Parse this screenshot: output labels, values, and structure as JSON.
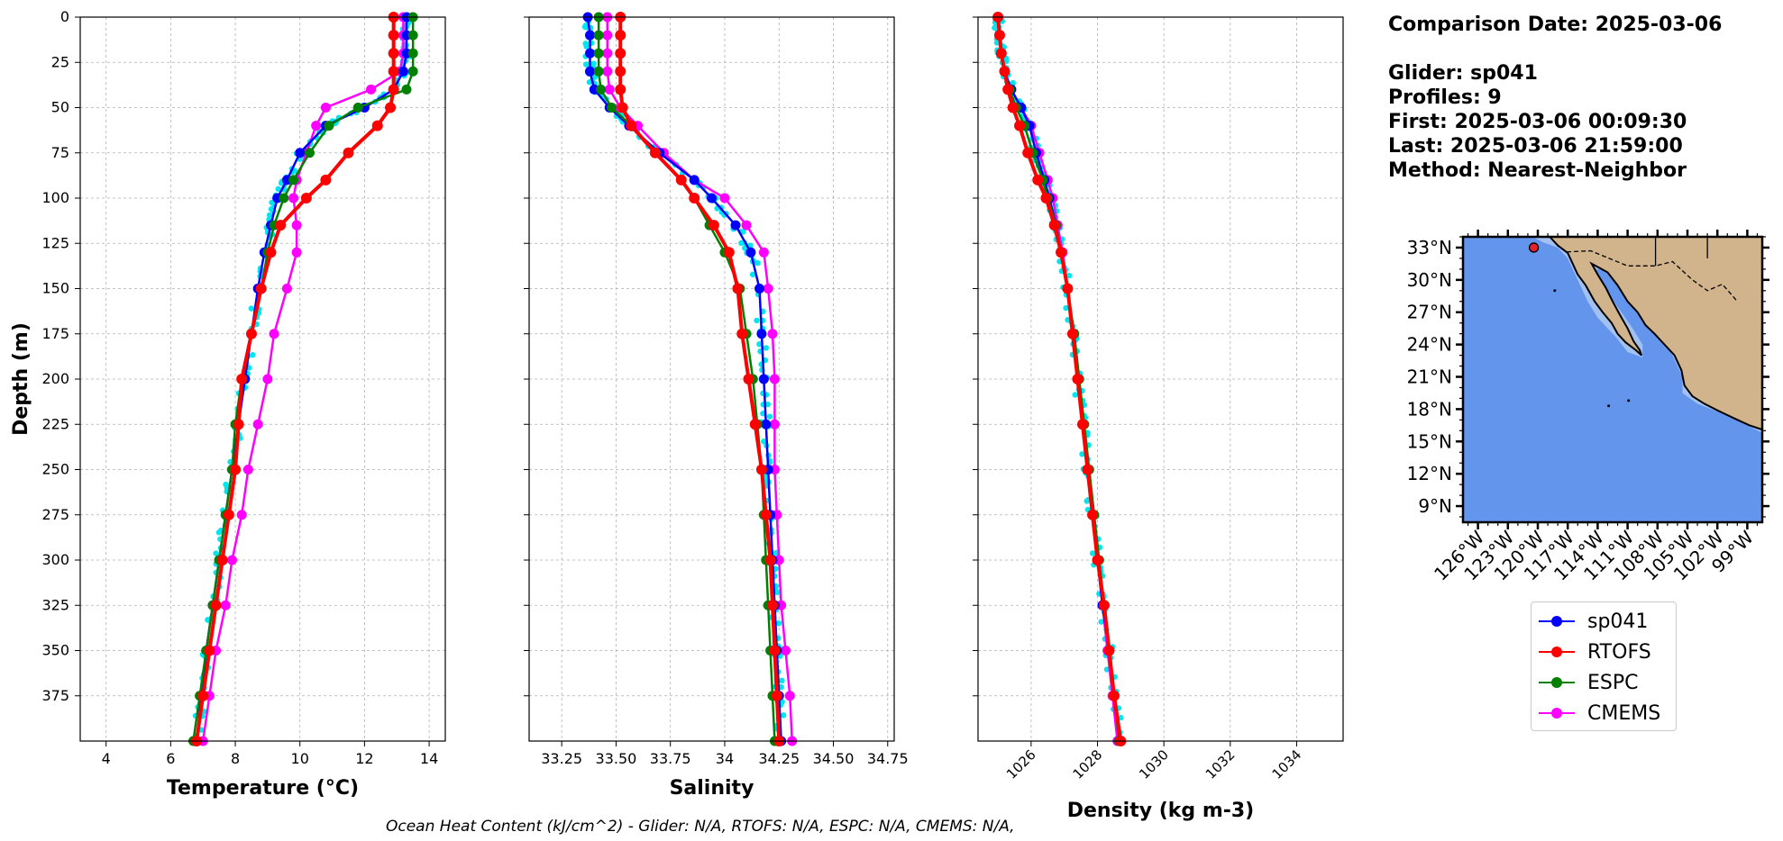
{
  "info": {
    "comparison_date": "Comparison Date: 2025-03-06",
    "glider": "Glider: sp041",
    "profiles": "Profiles: 9",
    "first": "First: 2025-03-06 00:09:30",
    "last": "Last: 2025-03-06 21:59:00",
    "method": "Method: Nearest-Neighbor"
  },
  "footer": "Ocean Heat Content (kJ/cm^2) - Glider: N/A,  RTOFS: N/A,  ESPC: N/A,  CMEMS: N/A,",
  "colors": {
    "sp041": "#0000ff",
    "RTOFS": "#ff0000",
    "ESPC": "#008000",
    "CMEMS": "#ff00ff",
    "glider_raw": "#00e5ee",
    "grid": "#b0b0b0",
    "ocean": "#6495ed",
    "shelf": "#a3c1ef",
    "land": "#d2b48c"
  },
  "legend": [
    {
      "name": "sp041",
      "color": "#0000ff"
    },
    {
      "name": "RTOFS",
      "color": "#ff0000"
    },
    {
      "name": "ESPC",
      "color": "#008000"
    },
    {
      "name": "CMEMS",
      "color": "#ff00ff"
    }
  ],
  "map": {
    "lat_ticks": [
      "33°N",
      "30°N",
      "27°N",
      "24°N",
      "21°N",
      "18°N",
      "15°N",
      "12°N",
      "9°N"
    ],
    "lon_ticks": [
      "126°W",
      "123°W",
      "120°W",
      "117°W",
      "114°W",
      "111°W",
      "108°W",
      "105°W",
      "102°W",
      "99°W"
    ],
    "glider_position": [
      -120.4,
      33.0
    ]
  },
  "chart_data": [
    {
      "type": "line",
      "xlabel": "Temperature (°C)",
      "ylabel": "Depth (m)",
      "xlim": [
        3.2,
        14.5
      ],
      "ylim": [
        400,
        0
      ],
      "xticks": [
        4,
        6,
        8,
        10,
        12,
        14
      ],
      "yticks": [
        0,
        25,
        50,
        75,
        100,
        125,
        150,
        175,
        200,
        225,
        250,
        275,
        300,
        325,
        350,
        375
      ],
      "depth": [
        0,
        10,
        20,
        30,
        40,
        50,
        60,
        75,
        90,
        100,
        115,
        130,
        150,
        175,
        200,
        225,
        250,
        275,
        300,
        325,
        350,
        375,
        400
      ],
      "series": [
        {
          "name": "sp041",
          "values": [
            13.3,
            13.3,
            13.3,
            13.2,
            12.9,
            12.0,
            10.8,
            10.0,
            9.6,
            9.3,
            9.1,
            8.9,
            8.7,
            8.5,
            8.3,
            8.1,
            7.9,
            7.7,
            7.5,
            7.3,
            7.1,
            6.95,
            6.8
          ]
        },
        {
          "name": "RTOFS",
          "values": [
            12.9,
            12.9,
            12.9,
            12.9,
            12.9,
            12.8,
            12.4,
            11.5,
            10.8,
            10.2,
            9.4,
            9.1,
            8.8,
            8.5,
            8.2,
            8.1,
            8.0,
            7.8,
            7.6,
            7.4,
            7.2,
            7.0,
            6.8
          ]
        },
        {
          "name": "ESPC",
          "values": [
            13.5,
            13.5,
            13.5,
            13.5,
            13.3,
            11.8,
            10.9,
            10.3,
            9.8,
            9.5,
            9.2,
            9.0,
            8.8,
            8.5,
            8.2,
            8.0,
            7.9,
            7.7,
            7.5,
            7.3,
            7.1,
            6.9,
            6.7
          ]
        },
        {
          "name": "CMEMS",
          "values": [
            13.2,
            13.2,
            13.2,
            13.1,
            12.2,
            10.8,
            10.5,
            10.2,
            9.9,
            9.8,
            9.9,
            9.9,
            9.6,
            9.2,
            9.0,
            8.7,
            8.4,
            8.2,
            7.9,
            7.7,
            7.4,
            7.2,
            7.0
          ]
        }
      ]
    },
    {
      "type": "line",
      "xlabel": "Salinity",
      "xlim": [
        33.1,
        34.78
      ],
      "ylim": [
        400,
        0
      ],
      "xticks": [
        33.25,
        33.5,
        33.75,
        34.0,
        34.25,
        34.5,
        34.75
      ],
      "depth": [
        0,
        10,
        20,
        30,
        40,
        50,
        60,
        75,
        90,
        100,
        115,
        130,
        150,
        175,
        200,
        225,
        250,
        275,
        300,
        325,
        350,
        375,
        400
      ],
      "series": [
        {
          "name": "sp041",
          "values": [
            33.37,
            33.38,
            33.38,
            33.38,
            33.4,
            33.47,
            33.56,
            33.7,
            33.86,
            33.94,
            34.05,
            34.12,
            34.16,
            34.17,
            34.18,
            34.19,
            34.2,
            34.21,
            34.22,
            34.23,
            34.24,
            34.25,
            34.26
          ]
        },
        {
          "name": "RTOFS",
          "values": [
            33.52,
            33.52,
            33.52,
            33.52,
            33.52,
            33.53,
            33.57,
            33.68,
            33.8,
            33.86,
            33.95,
            34.02,
            34.06,
            34.08,
            34.11,
            34.14,
            34.17,
            34.19,
            34.21,
            34.22,
            34.23,
            34.24,
            34.25
          ]
        },
        {
          "name": "ESPC",
          "values": [
            33.42,
            33.42,
            33.42,
            33.42,
            33.43,
            33.48,
            33.57,
            33.68,
            33.8,
            33.86,
            33.93,
            34.0,
            34.07,
            34.1,
            34.13,
            34.15,
            34.17,
            34.18,
            34.19,
            34.2,
            34.21,
            34.22,
            34.23
          ]
        },
        {
          "name": "CMEMS",
          "values": [
            33.46,
            33.46,
            33.46,
            33.46,
            33.47,
            33.52,
            33.6,
            33.72,
            33.86,
            34.0,
            34.1,
            34.18,
            34.2,
            34.22,
            34.23,
            34.23,
            34.23,
            34.24,
            34.25,
            34.26,
            34.28,
            34.3,
            34.31
          ]
        }
      ]
    },
    {
      "type": "line",
      "xlabel": "Density (kg m-3)",
      "xlim": [
        1024.4,
        1035.4
      ],
      "ylim": [
        400,
        0
      ],
      "xticks": [
        1026,
        1028,
        1030,
        1032,
        1034
      ],
      "depth": [
        0,
        10,
        20,
        30,
        40,
        50,
        60,
        75,
        90,
        100,
        115,
        130,
        150,
        175,
        200,
        225,
        250,
        275,
        300,
        325,
        350,
        375,
        400
      ],
      "series": [
        {
          "name": "sp041",
          "values": [
            1025.0,
            1025.05,
            1025.1,
            1025.2,
            1025.4,
            1025.7,
            1025.95,
            1026.15,
            1026.4,
            1026.55,
            1026.75,
            1026.9,
            1027.1,
            1027.25,
            1027.4,
            1027.55,
            1027.7,
            1027.85,
            1028.0,
            1028.15,
            1028.35,
            1028.5,
            1028.7
          ]
        },
        {
          "name": "RTOFS",
          "values": [
            1025.0,
            1025.05,
            1025.1,
            1025.2,
            1025.3,
            1025.45,
            1025.65,
            1025.9,
            1026.2,
            1026.45,
            1026.7,
            1026.9,
            1027.1,
            1027.25,
            1027.4,
            1027.55,
            1027.7,
            1027.85,
            1028.0,
            1028.2,
            1028.35,
            1028.5,
            1028.7
          ]
        },
        {
          "name": "ESPC",
          "values": [
            1025.0,
            1025.05,
            1025.1,
            1025.2,
            1025.35,
            1025.55,
            1025.8,
            1026.05,
            1026.35,
            1026.5,
            1026.75,
            1026.9,
            1027.1,
            1027.3,
            1027.45,
            1027.6,
            1027.75,
            1027.9,
            1028.05,
            1028.2,
            1028.35,
            1028.5,
            1028.65
          ]
        },
        {
          "name": "CMEMS",
          "values": [
            1025.0,
            1025.05,
            1025.1,
            1025.2,
            1025.4,
            1025.7,
            1026.0,
            1026.25,
            1026.5,
            1026.65,
            1026.8,
            1026.95,
            1027.1,
            1027.25,
            1027.4,
            1027.55,
            1027.7,
            1027.85,
            1028.0,
            1028.15,
            1028.3,
            1028.45,
            1028.6
          ]
        }
      ]
    }
  ]
}
